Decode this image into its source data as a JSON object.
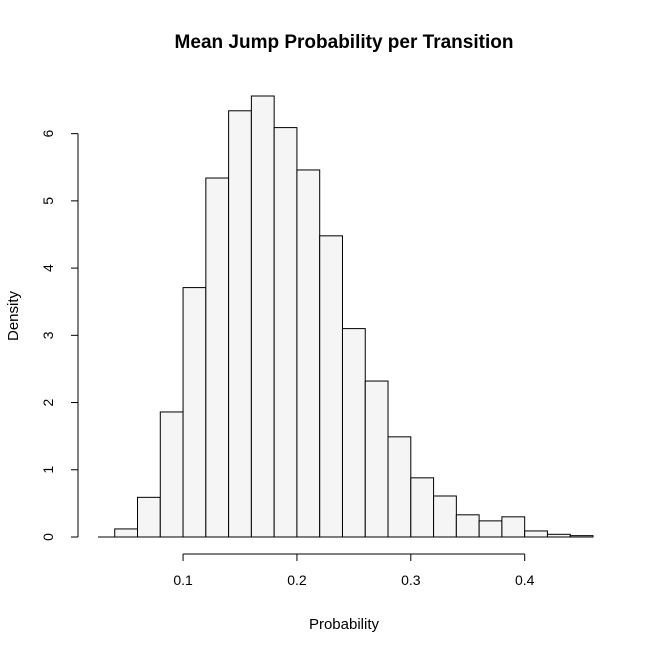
{
  "chart_data": {
    "type": "bar",
    "title": "Mean Jump Probability per Transition",
    "xlabel": "Probability",
    "ylabel": "Density",
    "bin_width": 0.02,
    "bins": [
      {
        "start": 0.04,
        "end": 0.06,
        "density": 0.12
      },
      {
        "start": 0.06,
        "end": 0.08,
        "density": 0.59
      },
      {
        "start": 0.08,
        "end": 0.1,
        "density": 1.86
      },
      {
        "start": 0.1,
        "end": 0.12,
        "density": 3.71
      },
      {
        "start": 0.12,
        "end": 0.14,
        "density": 5.34
      },
      {
        "start": 0.14,
        "end": 0.16,
        "density": 6.34
      },
      {
        "start": 0.16,
        "end": 0.18,
        "density": 6.56
      },
      {
        "start": 0.18,
        "end": 0.2,
        "density": 6.09
      },
      {
        "start": 0.2,
        "end": 0.22,
        "density": 5.46
      },
      {
        "start": 0.22,
        "end": 0.24,
        "density": 4.48
      },
      {
        "start": 0.24,
        "end": 0.26,
        "density": 3.1
      },
      {
        "start": 0.26,
        "end": 0.28,
        "density": 2.32
      },
      {
        "start": 0.28,
        "end": 0.3,
        "density": 1.49
      },
      {
        "start": 0.3,
        "end": 0.32,
        "density": 0.88
      },
      {
        "start": 0.32,
        "end": 0.34,
        "density": 0.61
      },
      {
        "start": 0.34,
        "end": 0.36,
        "density": 0.33
      },
      {
        "start": 0.36,
        "end": 0.38,
        "density": 0.24
      },
      {
        "start": 0.38,
        "end": 0.4,
        "density": 0.3
      },
      {
        "start": 0.4,
        "end": 0.42,
        "density": 0.09
      },
      {
        "start": 0.42,
        "end": 0.44,
        "density": 0.04
      },
      {
        "start": 0.44,
        "end": 0.46,
        "density": 0.02
      }
    ],
    "x_ticks": [
      0.1,
      0.2,
      0.3,
      0.4
    ],
    "x_tick_labels": [
      "0.1",
      "0.2",
      "0.3",
      "0.4"
    ],
    "y_ticks": [
      0,
      1,
      2,
      3,
      4,
      5,
      6
    ],
    "y_tick_labels": [
      "0",
      "1",
      "2",
      "3",
      "4",
      "5",
      "6"
    ],
    "xlim": [
      0.0253,
      0.46
    ],
    "ylim": [
      0,
      6.56
    ],
    "grid": false,
    "legend": "none",
    "colors": {
      "bar_fill": "#f5f5f5",
      "bar_stroke": "#000000"
    }
  }
}
